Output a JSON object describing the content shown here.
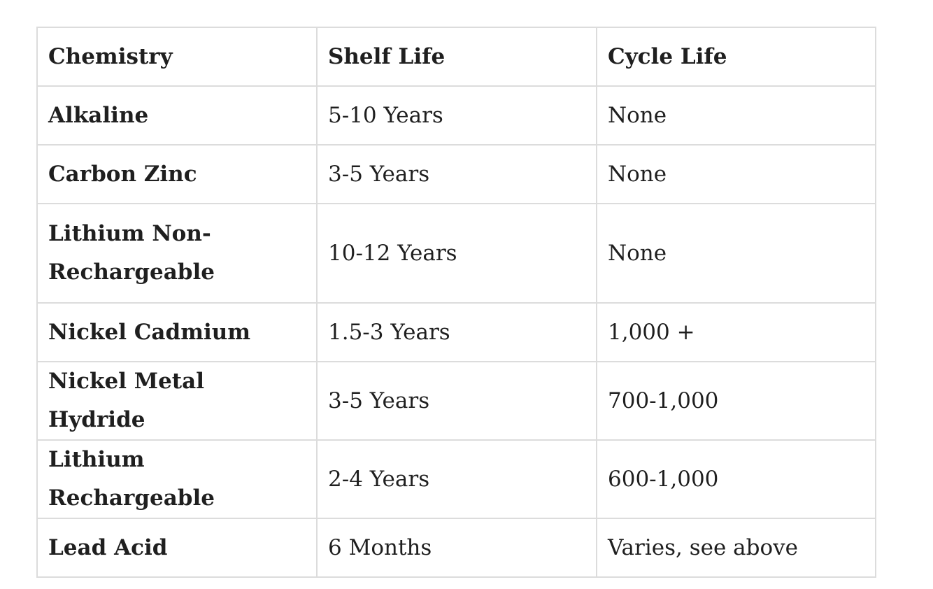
{
  "table": {
    "headers": [
      "Chemistry",
      "Shelf Life",
      "Cycle Life"
    ],
    "rows": [
      [
        "Alkaline",
        "5-10 Years",
        "None"
      ],
      [
        "Carbon Zinc",
        "3-5 Years",
        "None"
      ],
      [
        "Lithium Non-Rechargeable",
        "10-12 Years",
        "None"
      ],
      [
        "Nickel Cadmium",
        "1.5-3 Years",
        "1,000 +"
      ],
      [
        "Nickel Metal Hydride",
        "3-5 Years",
        "700-1,000"
      ],
      [
        "Lithium Rechargeable",
        "2-4 Years",
        "600-1,000"
      ],
      [
        "Lead Acid",
        "6 Months",
        "Varies, see above"
      ]
    ]
  },
  "colors": {
    "border": "#dcdcdc",
    "text": "#1f1f1f",
    "background": "#ffffff"
  }
}
